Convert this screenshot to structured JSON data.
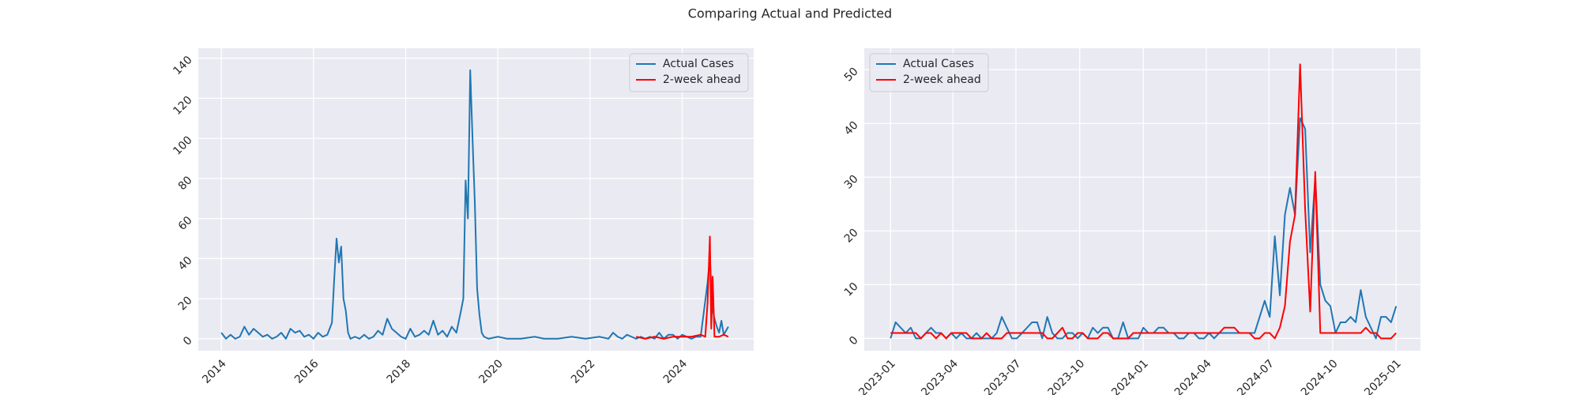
{
  "title": "Comparing Actual and Predicted",
  "chart_data": [
    {
      "type": "line",
      "legend": "upper right",
      "grid": true,
      "xlim": [
        2013.5,
        2025.55
      ],
      "ylim": [
        -6,
        145
      ],
      "xticks": [
        2014,
        2016,
        2018,
        2020,
        2022,
        2024
      ],
      "yticks": [
        0,
        20,
        40,
        60,
        80,
        100,
        120,
        140
      ],
      "series": [
        {
          "name": "Actual Cases",
          "color": "#1f77b4",
          "x": [
            2014.0,
            2014.1,
            2014.2,
            2014.3,
            2014.4,
            2014.5,
            2014.6,
            2014.7,
            2014.8,
            2014.9,
            2015.0,
            2015.1,
            2015.2,
            2015.3,
            2015.4,
            2015.5,
            2015.6,
            2015.7,
            2015.8,
            2015.9,
            2016.0,
            2016.1,
            2016.2,
            2016.3,
            2016.4,
            2016.45,
            2016.5,
            2016.55,
            2016.6,
            2016.65,
            2016.7,
            2016.75,
            2016.8,
            2016.9,
            2017.0,
            2017.1,
            2017.2,
            2017.3,
            2017.4,
            2017.5,
            2017.6,
            2017.7,
            2017.8,
            2017.9,
            2018.0,
            2018.1,
            2018.2,
            2018.3,
            2018.4,
            2018.5,
            2018.6,
            2018.7,
            2018.8,
            2018.9,
            2019.0,
            2019.1,
            2019.2,
            2019.25,
            2019.3,
            2019.35,
            2019.4,
            2019.45,
            2019.5,
            2019.55,
            2019.6,
            2019.65,
            2019.7,
            2019.8,
            2020.0,
            2020.2,
            2020.5,
            2020.8,
            2021.0,
            2021.3,
            2021.6,
            2021.9,
            2022.2,
            2022.4,
            2022.5,
            2022.6,
            2022.7,
            2022.8,
            2022.9,
            2023.0,
            2023.1,
            2023.2,
            2023.3,
            2023.4,
            2023.5,
            2023.6,
            2023.7,
            2023.8,
            2023.9,
            2024.0,
            2024.1,
            2024.2,
            2024.3,
            2024.4,
            2024.5,
            2024.55,
            2024.6,
            2024.65,
            2024.7,
            2024.75,
            2024.8,
            2024.85,
            2024.9,
            2024.95,
            2025.0
          ],
          "values": [
            3,
            0,
            2,
            0,
            1,
            6,
            2,
            5,
            3,
            1,
            2,
            0,
            1,
            3,
            0,
            5,
            3,
            4,
            1,
            2,
            0,
            3,
            1,
            2,
            8,
            30,
            50,
            38,
            46,
            20,
            14,
            3,
            0,
            1,
            0,
            2,
            0,
            1,
            4,
            2,
            10,
            5,
            3,
            1,
            0,
            5,
            1,
            2,
            4,
            2,
            9,
            2,
            4,
            1,
            6,
            3,
            14,
            20,
            79,
            60,
            134,
            100,
            68,
            25,
            12,
            3,
            1,
            0,
            1,
            0,
            0,
            1,
            0,
            0,
            1,
            0,
            1,
            0,
            3,
            1,
            0,
            2,
            1,
            0,
            1,
            0,
            1,
            0,
            3,
            0,
            2,
            2,
            0,
            2,
            1,
            0,
            1,
            1,
            19,
            28,
            41,
            16,
            10,
            6,
            3,
            9,
            2,
            4,
            6
          ]
        },
        {
          "name": "2-week ahead",
          "color": "#ff0000",
          "x": [
            2023.0,
            2023.2,
            2023.4,
            2023.6,
            2023.8,
            2024.0,
            2024.2,
            2024.4,
            2024.5,
            2024.55,
            2024.6,
            2024.63,
            2024.66,
            2024.7,
            2024.8,
            2024.9,
            2025.0
          ],
          "values": [
            1,
            0,
            1,
            0,
            1,
            1,
            1,
            2,
            1,
            18,
            51,
            5,
            31,
            1,
            1,
            2,
            1
          ]
        }
      ]
    },
    {
      "type": "line",
      "legend": "upper left",
      "grid": true,
      "xlim": [
        2022.896,
        2025.096
      ],
      "ylim": [
        -2.3,
        54
      ],
      "xticks": [
        {
          "value": 2023.0,
          "label": "2023-01"
        },
        {
          "value": 2023.247,
          "label": "2023-04"
        },
        {
          "value": 2023.496,
          "label": "2023-07"
        },
        {
          "value": 2023.748,
          "label": "2023-10"
        },
        {
          "value": 2024.0,
          "label": "2024-01"
        },
        {
          "value": 2024.249,
          "label": "2024-04"
        },
        {
          "value": 2024.497,
          "label": "2024-07"
        },
        {
          "value": 2024.749,
          "label": "2024-10"
        },
        {
          "value": 2025.0,
          "label": "2025-01"
        }
      ],
      "yticks": [
        0,
        10,
        20,
        30,
        40,
        50
      ],
      "x": [
        2023.0,
        2023.02,
        2023.04,
        2023.06,
        2023.08,
        2023.1,
        2023.12,
        2023.14,
        2023.16,
        2023.18,
        2023.2,
        2023.22,
        2023.24,
        2023.26,
        2023.28,
        2023.3,
        2023.32,
        2023.34,
        2023.36,
        2023.38,
        2023.4,
        2023.42,
        2023.44,
        2023.46,
        2023.48,
        2023.5,
        2023.52,
        2023.54,
        2023.56,
        2023.58,
        2023.6,
        2023.62,
        2023.64,
        2023.66,
        2023.68,
        2023.7,
        2023.72,
        2023.74,
        2023.76,
        2023.78,
        2023.8,
        2023.82,
        2023.84,
        2023.86,
        2023.88,
        2023.9,
        2023.92,
        2023.94,
        2023.96,
        2023.98,
        2024.0,
        2024.02,
        2024.04,
        2024.06,
        2024.08,
        2024.1,
        2024.12,
        2024.14,
        2024.16,
        2024.18,
        2024.2,
        2024.22,
        2024.24,
        2024.26,
        2024.28,
        2024.3,
        2024.32,
        2024.34,
        2024.36,
        2024.38,
        2024.4,
        2024.42,
        2024.44,
        2024.46,
        2024.48,
        2024.5,
        2024.52,
        2024.54,
        2024.56,
        2024.58,
        2024.6,
        2024.62,
        2024.64,
        2024.66,
        2024.68,
        2024.7,
        2024.72,
        2024.74,
        2024.76,
        2024.78,
        2024.8,
        2024.82,
        2024.84,
        2024.86,
        2024.88,
        2024.9,
        2024.92,
        2024.94,
        2024.96,
        2024.98,
        2025.0
      ],
      "series": [
        {
          "name": "Actual Cases",
          "color": "#1f77b4",
          "values": [
            0,
            3,
            2,
            1,
            2,
            0,
            0,
            1,
            2,
            1,
            1,
            0,
            1,
            0,
            1,
            0,
            0,
            1,
            0,
            0,
            0,
            1,
            4,
            2,
            0,
            0,
            1,
            2,
            3,
            3,
            0,
            4,
            1,
            0,
            0,
            1,
            1,
            0,
            1,
            0,
            2,
            1,
            2,
            2,
            0,
            0,
            3,
            0,
            0,
            0,
            2,
            1,
            1,
            2,
            2,
            1,
            1,
            0,
            0,
            1,
            1,
            0,
            0,
            1,
            0,
            1,
            1,
            1,
            1,
            1,
            1,
            1,
            1,
            4,
            7,
            4,
            19,
            8,
            23,
            28,
            23,
            41,
            39,
            16,
            30,
            10,
            7,
            6,
            1,
            3,
            3,
            4,
            3,
            9,
            4,
            2,
            0,
            4,
            4,
            3,
            6
          ]
        },
        {
          "name": "2-week ahead",
          "color": "#ff0000",
          "values": [
            1,
            1,
            1,
            1,
            1,
            1,
            0,
            1,
            1,
            0,
            1,
            0,
            1,
            1,
            1,
            1,
            0,
            0,
            0,
            1,
            0,
            0,
            0,
            1,
            1,
            1,
            1,
            1,
            1,
            1,
            1,
            0,
            0,
            1,
            2,
            0,
            0,
            1,
            1,
            0,
            0,
            0,
            1,
            1,
            0,
            0,
            0,
            0,
            1,
            1,
            1,
            1,
            1,
            1,
            1,
            1,
            1,
            1,
            1,
            1,
            1,
            1,
            1,
            1,
            1,
            1,
            2,
            2,
            2,
            1,
            1,
            1,
            0,
            0,
            1,
            1,
            0,
            2,
            6,
            18,
            23,
            51,
            24,
            5,
            31,
            1,
            1,
            1,
            1,
            1,
            1,
            1,
            1,
            1,
            2,
            1,
            1,
            0,
            0,
            0,
            1
          ]
        }
      ]
    }
  ]
}
